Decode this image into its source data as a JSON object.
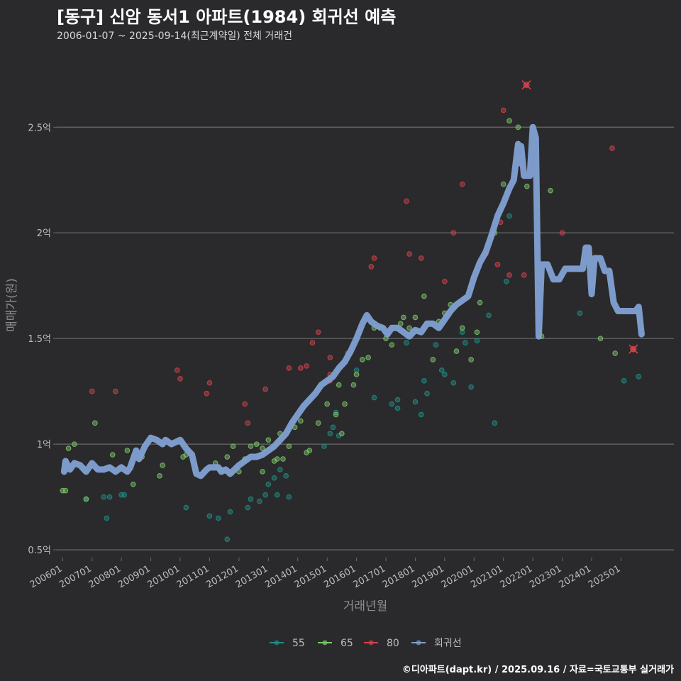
{
  "title": "[동구] 신암 동서1 아파트(1984) 회귀선 예측",
  "subtitle": "2006-01-07 ~ 2025-09-14(최근계약일) 전체 거래건",
  "caption": "©디아파트(dapt.kr) / 2025.09.16 / 자료=국토교통부 실거래가",
  "colors": {
    "background": "#2a2a2c",
    "grid": "#6b6b6b",
    "s55": "#1f8f86",
    "s65": "#7ec86a",
    "s80": "#d2434a",
    "regression": "#7f9fd0"
  },
  "chart_data": {
    "type": "scatter",
    "xlabel": "거래년월",
    "ylabel": "매매가(원)",
    "x_range": [
      2005.8,
      2026.8
    ],
    "ylim": [
      0.45,
      2.85
    ],
    "y_ticks": [
      0.5,
      1.0,
      1.5,
      2.0,
      2.5
    ],
    "y_tick_labels": [
      "0.5억",
      "1억",
      "1.5억",
      "2억",
      "2.5억"
    ],
    "x_ticks": [
      2006,
      2007,
      2008,
      2009,
      2010,
      2011,
      2012,
      2013,
      2014,
      2015,
      2016,
      2017,
      2018,
      2019,
      2020,
      2021,
      2022,
      2023,
      2024,
      2025
    ],
    "x_tick_labels": [
      "200601",
      "200701",
      "200801",
      "200901",
      "201001",
      "201101",
      "201201",
      "201301",
      "201401",
      "201501",
      "201601",
      "201701",
      "201801",
      "201901",
      "202001",
      "202101",
      "202201",
      "202301",
      "202401",
      "202501"
    ],
    "legend": [
      "55",
      "65",
      "80",
      "회귀선"
    ],
    "series": [
      {
        "name": "55",
        "points": [
          [
            2006.8,
            0.74
          ],
          [
            2007.4,
            0.75
          ],
          [
            2007.5,
            0.65
          ],
          [
            2007.6,
            0.75
          ],
          [
            2008.0,
            0.76
          ],
          [
            2008.1,
            0.76
          ],
          [
            2010.2,
            0.7
          ],
          [
            2011.0,
            0.66
          ],
          [
            2011.3,
            0.65
          ],
          [
            2011.6,
            0.55
          ],
          [
            2011.7,
            0.68
          ],
          [
            2012.3,
            0.7
          ],
          [
            2012.4,
            0.74
          ],
          [
            2012.7,
            0.73
          ],
          [
            2012.9,
            0.76
          ],
          [
            2013.0,
            0.81
          ],
          [
            2013.2,
            0.84
          ],
          [
            2013.3,
            0.76
          ],
          [
            2013.4,
            0.88
          ],
          [
            2013.6,
            0.85
          ],
          [
            2013.7,
            0.75
          ],
          [
            2014.9,
            0.99
          ],
          [
            2015.1,
            1.05
          ],
          [
            2015.2,
            1.08
          ],
          [
            2015.3,
            1.15
          ],
          [
            2015.4,
            1.04
          ],
          [
            2016.0,
            1.35
          ],
          [
            2016.6,
            1.22
          ],
          [
            2017.2,
            1.19
          ],
          [
            2017.4,
            1.17
          ],
          [
            2017.4,
            1.21
          ],
          [
            2017.7,
            1.48
          ],
          [
            2018.0,
            1.2
          ],
          [
            2018.2,
            1.14
          ],
          [
            2018.3,
            1.3
          ],
          [
            2018.4,
            1.24
          ],
          [
            2018.7,
            1.47
          ],
          [
            2018.9,
            1.35
          ],
          [
            2019.0,
            1.33
          ],
          [
            2019.3,
            1.29
          ],
          [
            2019.6,
            1.53
          ],
          [
            2019.7,
            1.48
          ],
          [
            2019.9,
            1.27
          ],
          [
            2020.1,
            1.49
          ],
          [
            2020.5,
            1.61
          ],
          [
            2020.7,
            1.1
          ],
          [
            2021.1,
            1.77
          ],
          [
            2021.2,
            2.08
          ],
          [
            2023.6,
            1.62
          ],
          [
            2025.1,
            1.3
          ],
          [
            2025.6,
            1.32
          ]
        ]
      },
      {
        "name": "65",
        "points": [
          [
            2006.0,
            0.78
          ],
          [
            2006.1,
            0.78
          ],
          [
            2006.2,
            0.98
          ],
          [
            2006.4,
            1.0
          ],
          [
            2006.8,
            0.74
          ],
          [
            2007.1,
            1.1
          ],
          [
            2007.7,
            0.95
          ],
          [
            2008.2,
            0.97
          ],
          [
            2008.4,
            0.81
          ],
          [
            2008.7,
            0.94
          ],
          [
            2009.3,
            0.85
          ],
          [
            2009.4,
            0.9
          ],
          [
            2010.1,
            0.94
          ],
          [
            2010.2,
            0.95
          ],
          [
            2011.2,
            0.91
          ],
          [
            2011.4,
            0.88
          ],
          [
            2011.6,
            0.94
          ],
          [
            2011.8,
            0.99
          ],
          [
            2012.0,
            0.87
          ],
          [
            2012.2,
            0.93
          ],
          [
            2012.4,
            0.99
          ],
          [
            2012.6,
            1.0
          ],
          [
            2012.8,
            0.87
          ],
          [
            2012.8,
            0.98
          ],
          [
            2013.0,
            1.02
          ],
          [
            2013.2,
            0.92
          ],
          [
            2013.3,
            0.93
          ],
          [
            2013.4,
            1.05
          ],
          [
            2013.5,
            0.93
          ],
          [
            2013.7,
            0.99
          ],
          [
            2013.9,
            1.08
          ],
          [
            2014.1,
            1.11
          ],
          [
            2014.3,
            0.96
          ],
          [
            2014.4,
            0.97
          ],
          [
            2014.7,
            1.1
          ],
          [
            2015.0,
            1.19
          ],
          [
            2015.3,
            1.14
          ],
          [
            2015.4,
            1.28
          ],
          [
            2015.5,
            1.05
          ],
          [
            2015.6,
            1.19
          ],
          [
            2015.9,
            1.28
          ],
          [
            2016.0,
            1.33
          ],
          [
            2016.2,
            1.4
          ],
          [
            2016.4,
            1.41
          ],
          [
            2016.6,
            1.55
          ],
          [
            2016.8,
            1.55
          ],
          [
            2017.0,
            1.5
          ],
          [
            2017.2,
            1.47
          ],
          [
            2017.5,
            1.57
          ],
          [
            2017.6,
            1.6
          ],
          [
            2017.8,
            1.55
          ],
          [
            2018.0,
            1.6
          ],
          [
            2018.3,
            1.7
          ],
          [
            2018.6,
            1.4
          ],
          [
            2018.8,
            1.58
          ],
          [
            2019.0,
            1.62
          ],
          [
            2019.2,
            1.66
          ],
          [
            2019.4,
            1.44
          ],
          [
            2019.6,
            1.55
          ],
          [
            2019.7,
            1.69
          ],
          [
            2019.9,
            1.4
          ],
          [
            2020.1,
            1.53
          ],
          [
            2020.2,
            1.67
          ],
          [
            2020.6,
            1.99
          ],
          [
            2020.7,
            2.0
          ],
          [
            2021.0,
            2.23
          ],
          [
            2021.2,
            2.53
          ],
          [
            2021.5,
            2.5
          ],
          [
            2021.8,
            2.22
          ],
          [
            2022.3,
            1.51
          ],
          [
            2022.6,
            2.2
          ],
          [
            2024.0,
            1.76
          ],
          [
            2024.3,
            1.5
          ],
          [
            2024.8,
            1.43
          ]
        ]
      },
      {
        "name": "80",
        "points": [
          [
            2007.0,
            1.25
          ],
          [
            2007.8,
            1.25
          ],
          [
            2009.9,
            1.35
          ],
          [
            2010.0,
            1.31
          ],
          [
            2010.9,
            1.24
          ],
          [
            2011.0,
            1.29
          ],
          [
            2012.2,
            1.19
          ],
          [
            2012.3,
            1.1
          ],
          [
            2012.9,
            1.26
          ],
          [
            2013.7,
            1.36
          ],
          [
            2014.1,
            1.36
          ],
          [
            2014.3,
            1.37
          ],
          [
            2014.5,
            1.48
          ],
          [
            2014.7,
            1.53
          ],
          [
            2015.1,
            1.41
          ],
          [
            2015.1,
            1.33
          ],
          [
            2015.1,
            1.3
          ],
          [
            2015.7,
            1.43
          ],
          [
            2016.5,
            1.84
          ],
          [
            2016.6,
            1.88
          ],
          [
            2017.7,
            2.15
          ],
          [
            2017.8,
            1.9
          ],
          [
            2018.2,
            1.88
          ],
          [
            2019.0,
            1.77
          ],
          [
            2019.3,
            2.0
          ],
          [
            2019.6,
            2.23
          ],
          [
            2020.4,
            1.9
          ],
          [
            2020.8,
            1.85
          ],
          [
            2020.9,
            2.05
          ],
          [
            2021.0,
            2.58
          ],
          [
            2021.2,
            1.8
          ],
          [
            2021.7,
            1.8
          ],
          [
            2023.0,
            2.0
          ],
          [
            2024.7,
            2.4
          ],
          [
            2025.4,
            1.45
          ]
        ]
      }
    ],
    "highlight_points": [
      [
        2021.78,
        2.7
      ],
      [
        2025.42,
        1.45
      ]
    ],
    "regression": [
      [
        2006.05,
        0.87
      ],
      [
        2006.1,
        0.92
      ],
      [
        2006.25,
        0.88
      ],
      [
        2006.4,
        0.91
      ],
      [
        2006.6,
        0.9
      ],
      [
        2006.8,
        0.87
      ],
      [
        2007.0,
        0.91
      ],
      [
        2007.2,
        0.88
      ],
      [
        2007.4,
        0.88
      ],
      [
        2007.6,
        0.89
      ],
      [
        2007.8,
        0.87
      ],
      [
        2008.0,
        0.89
      ],
      [
        2008.2,
        0.87
      ],
      [
        2008.3,
        0.89
      ],
      [
        2008.5,
        0.97
      ],
      [
        2008.6,
        0.93
      ],
      [
        2008.8,
        0.99
      ],
      [
        2009.0,
        1.03
      ],
      [
        2009.2,
        1.02
      ],
      [
        2009.4,
        1.0
      ],
      [
        2009.5,
        1.02
      ],
      [
        2009.7,
        1.0
      ],
      [
        2009.85,
        1.01
      ],
      [
        2010.0,
        1.02
      ],
      [
        2010.1,
        1.0
      ],
      [
        2010.2,
        0.98
      ],
      [
        2010.4,
        0.95
      ],
      [
        2010.55,
        0.86
      ],
      [
        2010.7,
        0.85
      ],
      [
        2010.9,
        0.88
      ],
      [
        2011.0,
        0.89
      ],
      [
        2011.2,
        0.89
      ],
      [
        2011.3,
        0.89
      ],
      [
        2011.4,
        0.87
      ],
      [
        2011.55,
        0.88
      ],
      [
        2011.7,
        0.86
      ],
      [
        2011.85,
        0.88
      ],
      [
        2012.0,
        0.9
      ],
      [
        2012.2,
        0.92
      ],
      [
        2012.4,
        0.94
      ],
      [
        2012.6,
        0.94
      ],
      [
        2012.8,
        0.95
      ],
      [
        2013.0,
        0.97
      ],
      [
        2013.2,
        0.99
      ],
      [
        2013.4,
        1.02
      ],
      [
        2013.6,
        1.05
      ],
      [
        2013.8,
        1.1
      ],
      [
        2014.0,
        1.14
      ],
      [
        2014.2,
        1.18
      ],
      [
        2014.4,
        1.21
      ],
      [
        2014.6,
        1.24
      ],
      [
        2014.8,
        1.28
      ],
      [
        2015.0,
        1.3
      ],
      [
        2015.2,
        1.32
      ],
      [
        2015.4,
        1.36
      ],
      [
        2015.6,
        1.39
      ],
      [
        2015.8,
        1.44
      ],
      [
        2016.0,
        1.5
      ],
      [
        2016.2,
        1.57
      ],
      [
        2016.35,
        1.61
      ],
      [
        2016.5,
        1.58
      ],
      [
        2016.7,
        1.56
      ],
      [
        2016.9,
        1.55
      ],
      [
        2017.05,
        1.52
      ],
      [
        2017.2,
        1.55
      ],
      [
        2017.4,
        1.55
      ],
      [
        2017.6,
        1.53
      ],
      [
        2017.8,
        1.51
      ],
      [
        2018.0,
        1.54
      ],
      [
        2018.2,
        1.53
      ],
      [
        2018.4,
        1.57
      ],
      [
        2018.6,
        1.57
      ],
      [
        2018.8,
        1.55
      ],
      [
        2019.0,
        1.59
      ],
      [
        2019.2,
        1.63
      ],
      [
        2019.4,
        1.66
      ],
      [
        2019.6,
        1.68
      ],
      [
        2019.8,
        1.7
      ],
      [
        2020.0,
        1.79
      ],
      [
        2020.2,
        1.86
      ],
      [
        2020.4,
        1.91
      ],
      [
        2020.6,
        1.99
      ],
      [
        2020.8,
        2.08
      ],
      [
        2021.0,
        2.14
      ],
      [
        2021.2,
        2.21
      ],
      [
        2021.35,
        2.25
      ],
      [
        2021.5,
        2.42
      ],
      [
        2021.55,
        2.33
      ],
      [
        2021.6,
        2.41
      ],
      [
        2021.7,
        2.27
      ],
      [
        2021.8,
        2.27
      ],
      [
        2021.9,
        2.27
      ],
      [
        2022.0,
        2.5
      ],
      [
        2022.1,
        2.45
      ],
      [
        2022.2,
        1.51
      ],
      [
        2022.3,
        1.85
      ],
      [
        2022.5,
        1.85
      ],
      [
        2022.7,
        1.78
      ],
      [
        2022.9,
        1.78
      ],
      [
        2023.1,
        1.83
      ],
      [
        2023.3,
        1.83
      ],
      [
        2023.5,
        1.83
      ],
      [
        2023.7,
        1.83
      ],
      [
        2023.8,
        1.93
      ],
      [
        2023.9,
        1.93
      ],
      [
        2024.0,
        1.71
      ],
      [
        2024.1,
        1.88
      ],
      [
        2024.3,
        1.88
      ],
      [
        2024.45,
        1.82
      ],
      [
        2024.6,
        1.82
      ],
      [
        2024.75,
        1.67
      ],
      [
        2024.9,
        1.63
      ],
      [
        2025.1,
        1.63
      ],
      [
        2025.3,
        1.63
      ],
      [
        2025.5,
        1.63
      ],
      [
        2025.6,
        1.65
      ],
      [
        2025.7,
        1.52
      ]
    ]
  }
}
